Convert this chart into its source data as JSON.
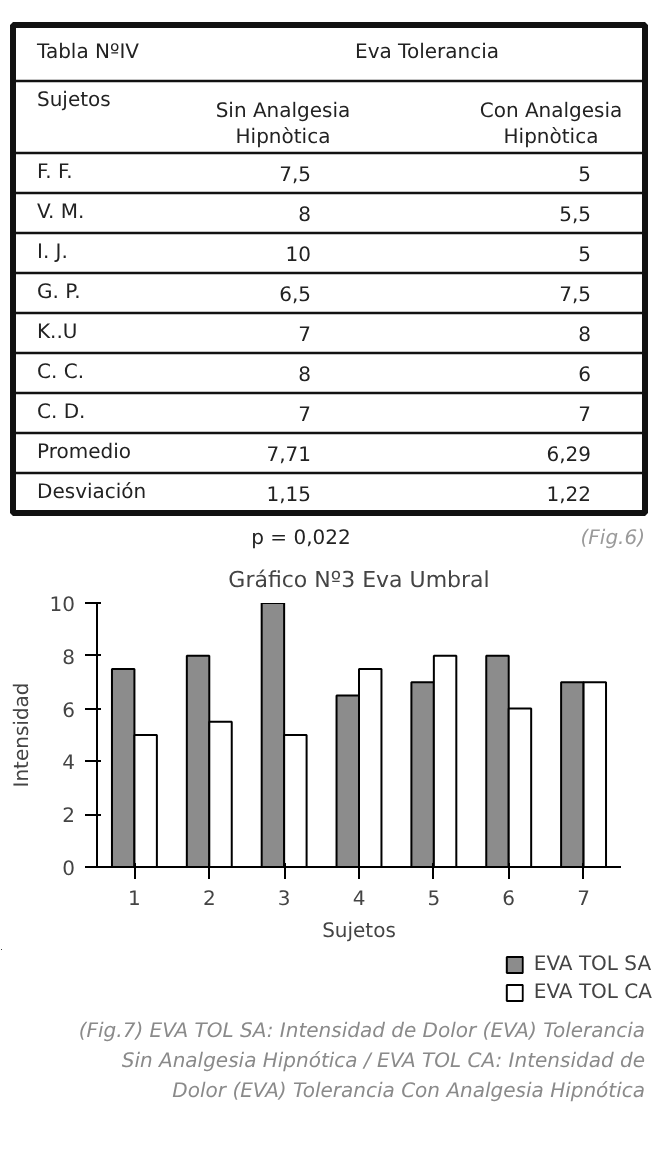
{
  "chart_data": [
    {
      "type": "other",
      "title": "Tabla NºIV",
      "subtitle": "Eva Tolerancia",
      "annotations": [
        "Sujetos",
        "Sin Analgesia Hipnòtica",
        "Con Analgesia Hipnòtica",
        "F. F.",
        "7,5",
        "5",
        "V. M.",
        "8",
        "5,5",
        "I. J.",
        "10",
        "5",
        "G. P.",
        "6,5",
        "7,5",
        "K..U",
        "7",
        "8",
        "C. C.",
        "8",
        "6",
        "C. D.",
        "7",
        "7",
        "Promedio",
        "7,71",
        "6,29",
        "Desviación",
        "1,15",
        "1,22",
        "p = 0,022",
        "(Fig.6)"
      ]
    },
    {
      "type": "bar",
      "title": "Gráfico Nº3 Eva Umbral",
      "xlabel": "Sujetos",
      "ylabel": "Intensidad",
      "categories": [
        "1",
        "2",
        "3",
        "4",
        "5",
        "6",
        "7"
      ],
      "series": [
        {
          "name": "EVA TOL SA",
          "color": "#8c8c8c",
          "values": [
            7.5,
            8,
            10,
            6.5,
            7,
            8,
            7
          ]
        },
        {
          "name": "EVA TOL CA",
          "color": "#ffffff",
          "values": [
            5,
            5.5,
            5,
            7.5,
            8,
            6,
            7
          ]
        }
      ],
      "ylim": [
        0,
        10
      ],
      "yticks": [
        0,
        2,
        4,
        6,
        8,
        10
      ],
      "legend": "bottom right",
      "annotations": [
        "(Fig.7) EVA TOL SA: Intensidad de Dolor (EVA) Tolerancia Sin Analgesia Hipnótica / EVA TOL CA: Intensidad de Dolor (EVA) Tolerancia Con Analgesia Hipnótica"
      ]
    }
  ]
}
